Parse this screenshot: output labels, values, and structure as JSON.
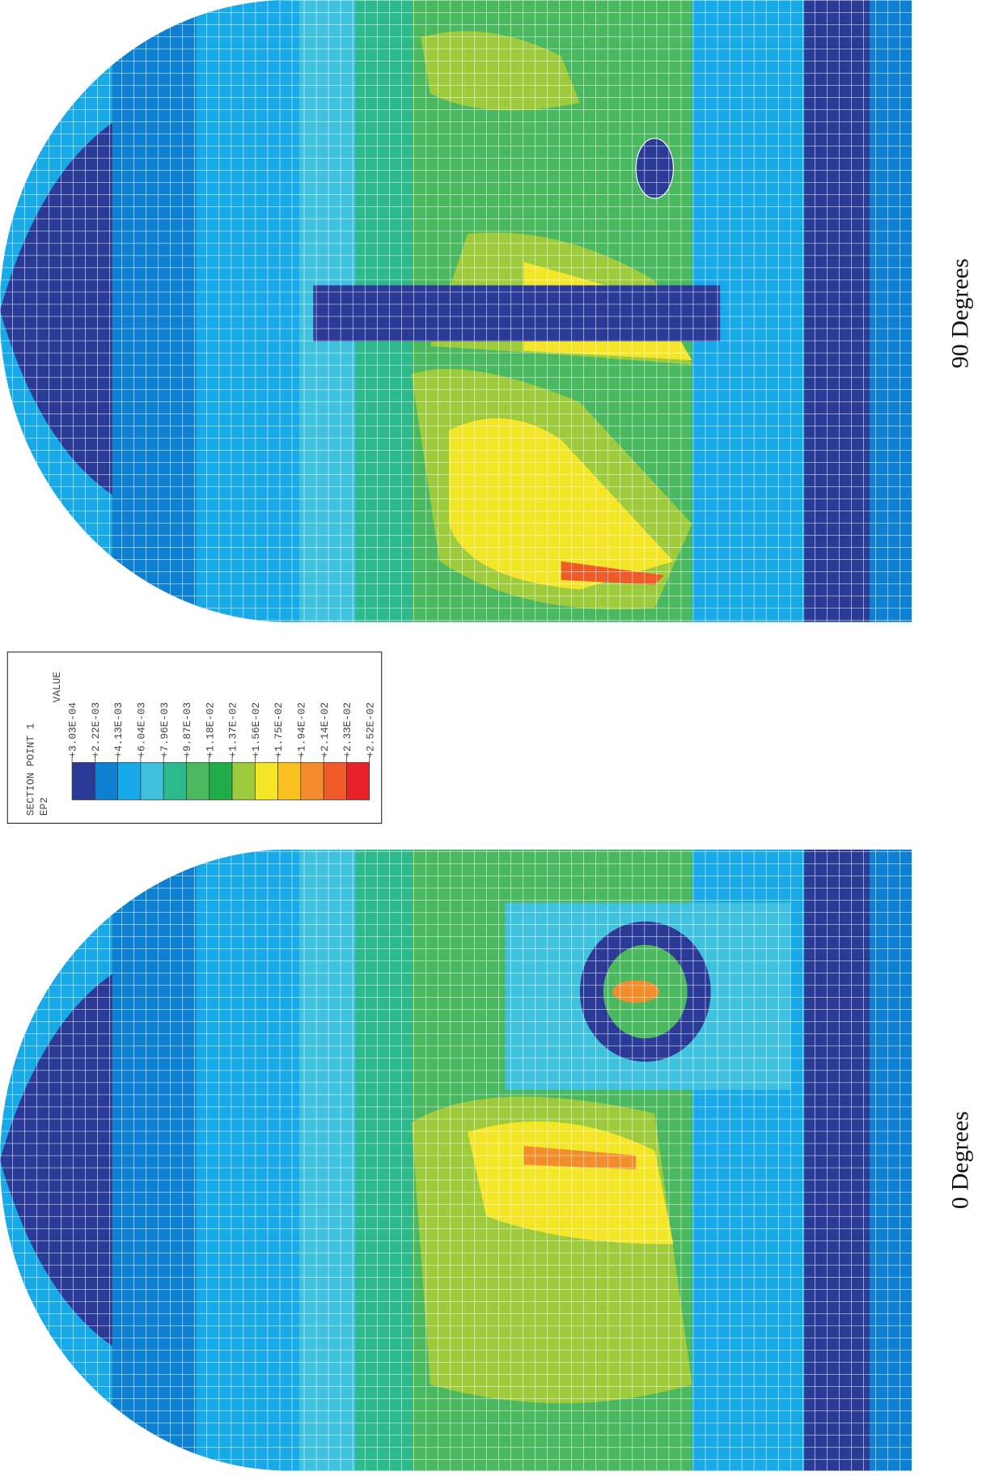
{
  "legend": {
    "title": "SECTION POINT 1",
    "variable": "EP2",
    "value_header": "VALUE",
    "levels": [
      "+3.03E-04",
      "+2.22E-03",
      "+4.13E-03",
      "+6.04E-03",
      "+7.96E-03",
      "+9.87E-03",
      "+1.18E-02",
      "+1.37E-02",
      "+1.56E-02",
      "+1.75E-02",
      "+1.94E-02",
      "+2.14E-02",
      "+2.33E-02",
      "+2.52E-02"
    ],
    "colors": [
      "#2b3a97",
      "#0e80d2",
      "#17a9e8",
      "#3ec2dd",
      "#2cb98c",
      "#49b85e",
      "#21ac4a",
      "#9ecb3c",
      "#f4e626",
      "#fbbf22",
      "#f38d2b",
      "#ee5a28",
      "#e62229"
    ]
  },
  "panels": [
    {
      "label": "90 Degrees"
    },
    {
      "label": "0 Degrees"
    }
  ]
}
